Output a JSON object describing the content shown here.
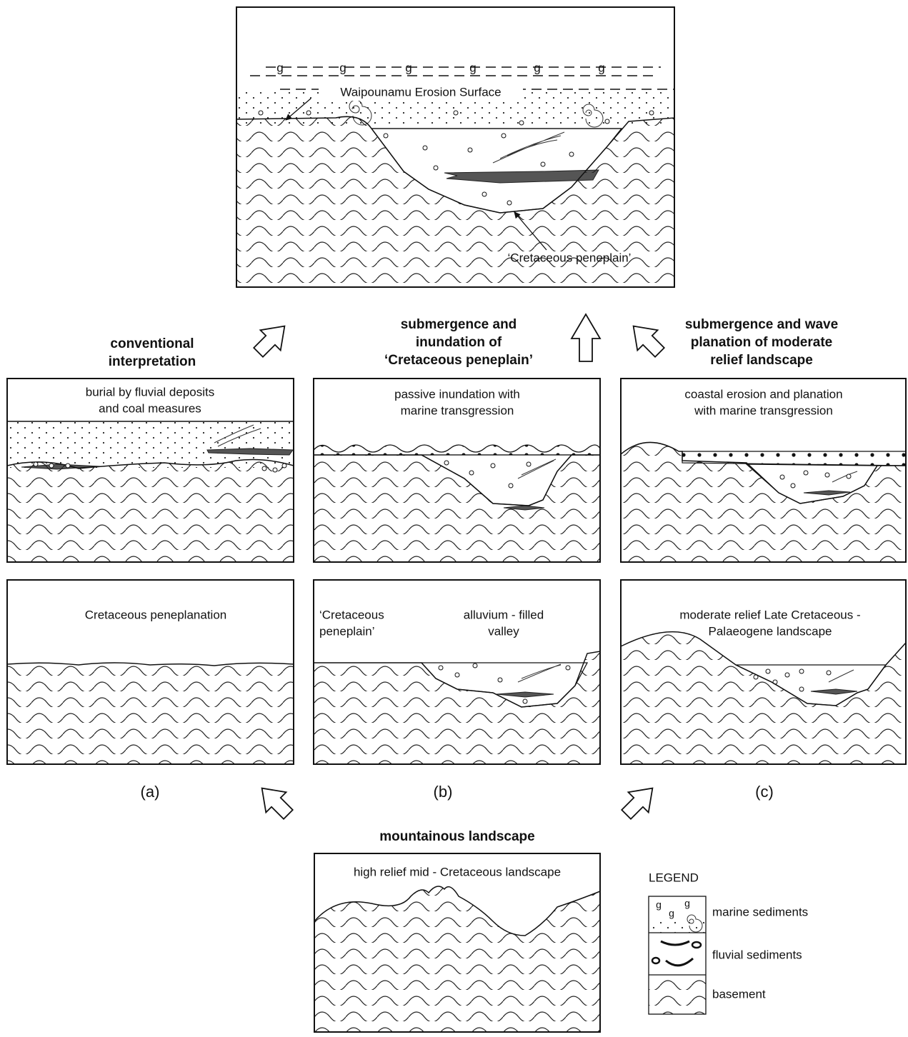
{
  "top_panel": {
    "marine_symbol": "g",
    "labels": [
      "Waipounamu Erosion Surface",
      "‘Cretaceous peneplain’"
    ]
  },
  "headings": [
    {
      "lines": [
        "conventional",
        "interpretation"
      ]
    },
    {
      "lines": [
        "submergence and",
        "inundation of",
        "‘Cretaceous peneplain’"
      ]
    },
    {
      "lines": [
        "submergence and wave",
        "planation of moderate",
        "relief landscape"
      ]
    },
    {
      "lines": [
        "mountainous landscape"
      ]
    }
  ],
  "middle_panels": [
    {
      "lines": [
        "burial by fluvial deposits",
        "and coal measures"
      ]
    },
    {
      "lines": [
        "passive inundation with",
        "marine transgression"
      ]
    },
    {
      "lines": [
        "coastal erosion and planation",
        "with marine transgression"
      ]
    }
  ],
  "bottom_panels": [
    {
      "labels": [
        "Cretaceous peneplanation"
      ]
    },
    {
      "labels": [
        "‘Cretaceous",
        "peneplain’",
        "alluvium - filled",
        "valley"
      ]
    },
    {
      "labels": [
        "moderate relief Late Cretaceous -",
        "Palaeogene landscape"
      ]
    }
  ],
  "column_labels": [
    "(a)",
    "(b)",
    "(c)"
  ],
  "mountain_panel": {
    "label": "high relief mid - Cretaceous landscape"
  },
  "legend": {
    "title": "LEGEND",
    "items": [
      "marine sediments",
      "fluvial sediments",
      "basement"
    ]
  }
}
